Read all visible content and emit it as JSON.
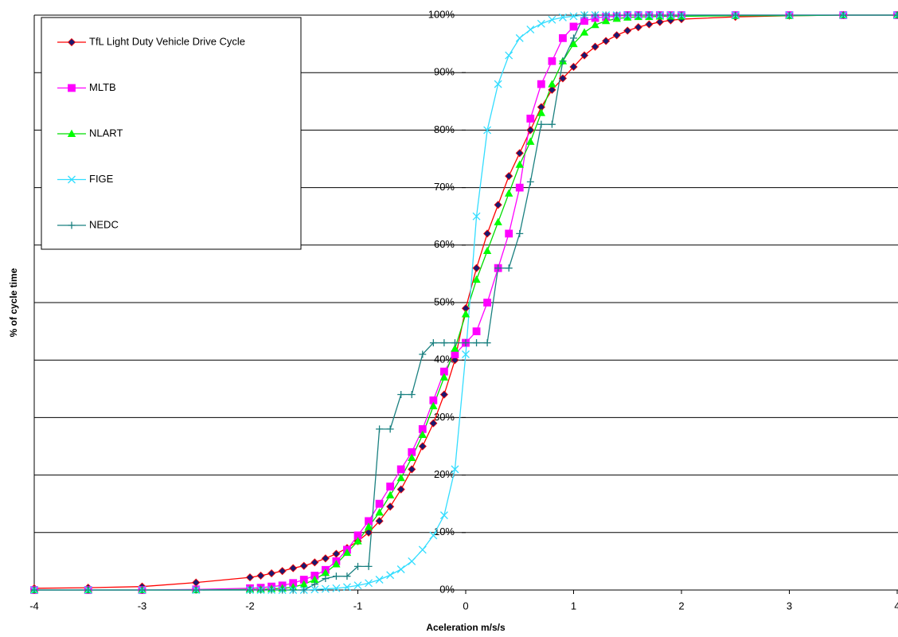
{
  "chart_data": {
    "type": "line",
    "xlabel": "Aceleration m/s/s",
    "ylabel": "% of cycle time",
    "x": [
      -4,
      -3.5,
      -3,
      -2.5,
      -2.0,
      -1.9,
      -1.8,
      -1.7,
      -1.6,
      -1.5,
      -1.4,
      -1.3,
      -1.2,
      -1.1,
      -1.0,
      -0.9,
      -0.8,
      -0.7,
      -0.6,
      -0.5,
      -0.4,
      -0.3,
      -0.2,
      -0.1,
      0,
      0.1,
      0.2,
      0.3,
      0.4,
      0.5,
      0.6,
      0.7,
      0.8,
      0.9,
      1.0,
      1.1,
      1.2,
      1.3,
      1.4,
      1.5,
      1.6,
      1.7,
      1.8,
      1.9,
      2.0,
      2.5,
      3,
      3.5,
      4
    ],
    "series": [
      {
        "name": "TfL Light Duty Vehicle Drive Cycle",
        "color": "#ff0000",
        "marker_fill": "#1a1a70",
        "marker": "diamond",
        "values": [
          0.3,
          0.4,
          0.6,
          1.3,
          2.2,
          2.5,
          2.9,
          3.3,
          3.8,
          4.2,
          4.8,
          5.5,
          6.3,
          7.3,
          8.5,
          10,
          12,
          14.5,
          17.5,
          21,
          25,
          29,
          34,
          40,
          49,
          56,
          62,
          67,
          72,
          76,
          80,
          84,
          87,
          89,
          91,
          93,
          94.5,
          95.5,
          96.5,
          97.3,
          97.9,
          98.4,
          98.8,
          99.1,
          99.3,
          99.7,
          99.9,
          100,
          100
        ]
      },
      {
        "name": "MLTB",
        "color": "#ff00ff",
        "marker_fill": "#ff00ff",
        "marker": "square",
        "values": [
          0,
          0,
          0,
          0.1,
          0.3,
          0.4,
          0.6,
          0.8,
          1.2,
          1.8,
          2.5,
          3.5,
          5,
          7,
          9.5,
          12,
          15,
          18,
          21,
          24,
          28,
          33,
          38,
          41,
          43,
          45,
          50,
          56,
          62,
          70,
          82,
          88,
          92,
          96,
          98,
          99,
          99.5,
          99.7,
          99.8,
          100,
          100,
          100,
          100,
          100,
          100,
          100,
          100,
          100,
          100
        ]
      },
      {
        "name": "NLART",
        "color": "#00dd00",
        "marker_fill": "#00ff00",
        "marker": "triangle",
        "values": [
          0,
          0,
          0,
          0,
          0.1,
          0.1,
          0.2,
          0.3,
          0.5,
          1,
          1.8,
          3,
          4.5,
          6.5,
          8.5,
          11,
          13.5,
          16.5,
          19.5,
          23,
          27,
          32,
          37,
          42,
          48,
          54,
          59,
          64,
          69,
          74,
          78,
          83,
          88,
          92,
          95,
          97,
          98.3,
          99,
          99.4,
          99.6,
          99.7,
          99.7,
          99.8,
          99.8,
          99.8,
          99.9,
          99.9,
          100,
          100
        ]
      },
      {
        "name": "FIGE",
        "color": "#33ddff",
        "marker_fill": "#33ddff",
        "marker": "x",
        "values": [
          0,
          0,
          0,
          0,
          0,
          0,
          0,
          0,
          0,
          0,
          0.1,
          0.2,
          0.3,
          0.5,
          0.8,
          1.2,
          1.8,
          2.6,
          3.6,
          5,
          7,
          9.5,
          13,
          21,
          41,
          65,
          80,
          88,
          93,
          96,
          97.5,
          98.5,
          99.2,
          99.6,
          99.8,
          100,
          100,
          100,
          100,
          100,
          100,
          100,
          100,
          100,
          100,
          100,
          100,
          100,
          100
        ]
      },
      {
        "name": "NEDC",
        "color": "#1a8080",
        "marker_fill": "#1a8080",
        "marker": "plus",
        "values": [
          0,
          0,
          0,
          0,
          0,
          0,
          0,
          0,
          0,
          0,
          1,
          2,
          2.4,
          2.4,
          4.1,
          4.1,
          28,
          28,
          34,
          34,
          41,
          43,
          43,
          43,
          43,
          43,
          43,
          56,
          56,
          62,
          71,
          81,
          81,
          92,
          96,
          100,
          100,
          100,
          100,
          100,
          100,
          100,
          100,
          100,
          100,
          100,
          100,
          100,
          100
        ]
      }
    ],
    "xlim": [
      -4,
      4
    ],
    "xticks": [
      -4,
      -3,
      -2,
      -1,
      0,
      1,
      2,
      3,
      4
    ],
    "ylim": [
      0,
      100
    ],
    "yticks": [
      {
        "value": 0,
        "label": "0%"
      },
      {
        "value": 10,
        "label": "10%"
      },
      {
        "value": 20,
        "label": "20%"
      },
      {
        "value": 30,
        "label": "30%"
      },
      {
        "value": 40,
        "label": "40%"
      },
      {
        "value": 50,
        "label": "50%"
      },
      {
        "value": 60,
        "label": "60%"
      },
      {
        "value": 70,
        "label": "70%"
      },
      {
        "value": 80,
        "label": "80%"
      },
      {
        "value": 90,
        "label": "90%"
      },
      {
        "value": 100,
        "label": "100%"
      }
    ],
    "grid": true,
    "legend": "upper-left"
  }
}
